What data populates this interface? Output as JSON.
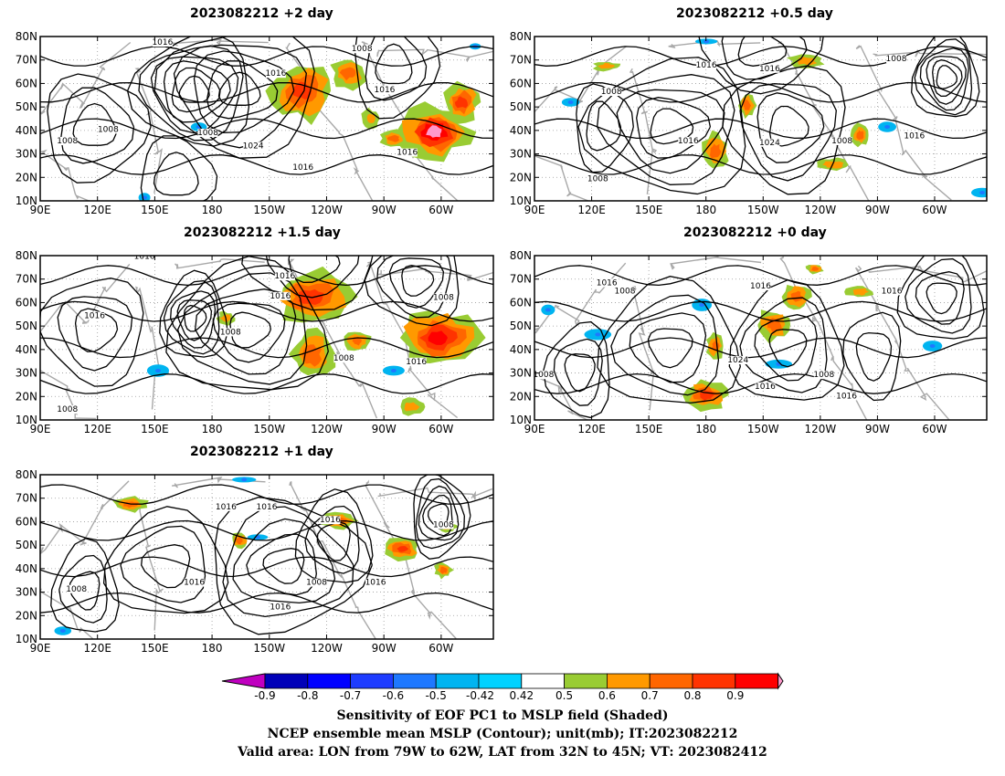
{
  "panels": [
    {
      "title": "2023082212 +2 day",
      "contour_labels": [
        "1016",
        "1016",
        "1016",
        "1008",
        "1008",
        "1008",
        "1008",
        "1024",
        "1016",
        "1016"
      ]
    },
    {
      "title": "2023082212 +0.5 day",
      "contour_labels": [
        "1016",
        "1016",
        "1008",
        "1008",
        "1016",
        "1024",
        "1008",
        "1016",
        "1008"
      ]
    },
    {
      "title": "2023082212 +1.5 day",
      "contour_labels": [
        "1016",
        "1016",
        "1016",
        "1008",
        "1016",
        "1008",
        "1008",
        "1016",
        "1008"
      ]
    },
    {
      "title": "2023082212 +0 day",
      "contour_labels": [
        "1016",
        "1008",
        "1016",
        "1016",
        "1008",
        "1024",
        "1016",
        "1008",
        "1016"
      ]
    },
    {
      "title": "2023082212 +1 day",
      "contour_labels": [
        "1016",
        "1016",
        "1016",
        "1008",
        "1016",
        "1008",
        "1016",
        "1008",
        "1016"
      ]
    }
  ],
  "axes": {
    "lat_ticks": [
      "80N",
      "70N",
      "60N",
      "50N",
      "40N",
      "30N",
      "20N",
      "10N"
    ],
    "lon_ticks": [
      "90E",
      "120E",
      "150E",
      "180",
      "150W",
      "120W",
      "90W",
      "60W"
    ]
  },
  "colorbar": {
    "labels": [
      "-0.9",
      "-0.8",
      "-0.7",
      "-0.6",
      "-0.5",
      "-0.42",
      "0.42",
      "0.5",
      "0.6",
      "0.7",
      "0.8",
      "0.9"
    ],
    "colors": [
      "#c000c0",
      "#0000b8",
      "#0000ff",
      "#1e3cff",
      "#1e78ff",
      "#00b4f0",
      "#00d2ff",
      "#ffffff",
      "#99cc33",
      "#ff9900",
      "#ff6600",
      "#ff3300",
      "#ff0000",
      "#ff99cc"
    ]
  },
  "caption": {
    "line1": "Sensitivity of EOF PC1 to MSLP field (Shaded)",
    "line2": "NCEP ensemble mean MSLP (Contour); unit(mb); IT:2023082212",
    "line3": "Valid area: LON from 79W to 62W, LAT from 32N to 45N; VT: 2023082412"
  }
}
